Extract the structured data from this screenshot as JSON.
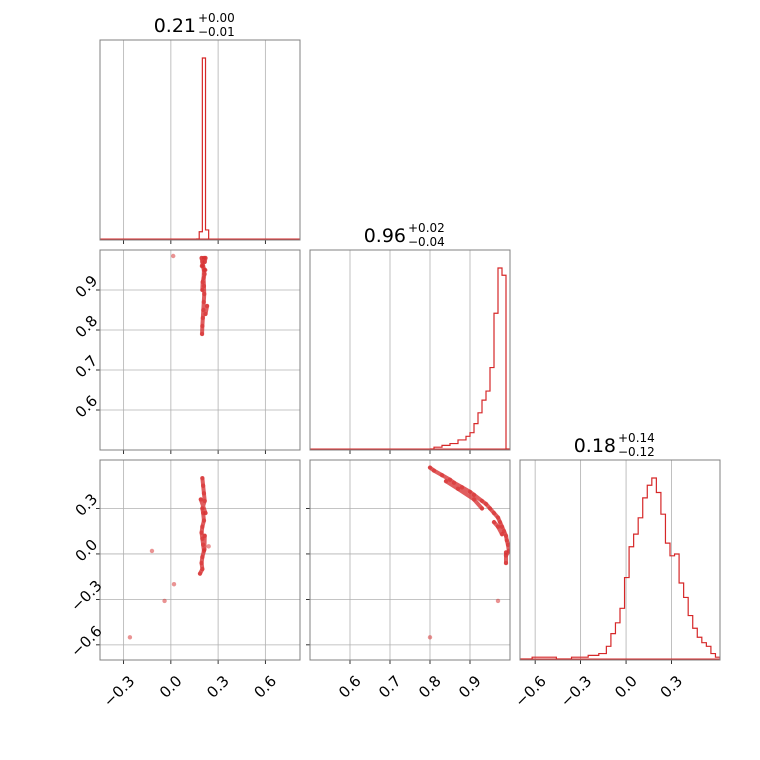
{
  "figure": {
    "background": "#ffffff",
    "accent_color": "#d62728",
    "grid_color": "#b0b0b0",
    "frame_color": "#808080"
  },
  "params": [
    {
      "id": "p0",
      "range": [
        -0.45,
        0.82
      ],
      "ticks": [
        -0.3,
        0.0,
        0.3,
        0.6
      ],
      "tick_labels": [
        "−0.3",
        "0.0",
        "0.3",
        "0.6"
      ],
      "title": {
        "value": "0.21",
        "plus": "+0.00",
        "minus": "−0.01"
      }
    },
    {
      "id": "p1",
      "range": [
        0.5,
        1.0
      ],
      "ticks": [
        0.6,
        0.7,
        0.8,
        0.9
      ],
      "tick_labels": [
        "0.6",
        "0.7",
        "0.8",
        "0.9"
      ],
      "title": {
        "value": "0.96",
        "plus": "+0.02",
        "minus": "−0.04"
      }
    },
    {
      "id": "p2",
      "range": [
        -0.7,
        0.62
      ],
      "ticks": [
        -0.6,
        -0.3,
        0.0,
        0.3
      ],
      "tick_labels": [
        "−0.6",
        "−0.3",
        "0.0",
        "0.3"
      ],
      "title": {
        "value": "0.18",
        "plus": "+0.14",
        "minus": "−0.12"
      }
    }
  ],
  "chart_data": {
    "type": "corner",
    "diagonal_histograms": [
      {
        "param": "p0",
        "bin_edges": [
          0.16,
          0.18,
          0.2,
          0.22,
          0.24
        ],
        "counts": [
          0.0,
          0.04,
          1.0,
          0.05
        ]
      },
      {
        "param": "p1",
        "bin_edges": [
          0.8,
          0.81,
          0.82,
          0.83,
          0.84,
          0.85,
          0.86,
          0.87,
          0.88,
          0.89,
          0.9,
          0.91,
          0.92,
          0.93,
          0.94,
          0.95,
          0.96,
          0.97,
          0.98,
          0.99,
          1.0
        ],
        "counts": [
          0.0,
          0.01,
          0.01,
          0.02,
          0.02,
          0.03,
          0.03,
          0.05,
          0.05,
          0.07,
          0.09,
          0.14,
          0.2,
          0.27,
          0.32,
          0.45,
          0.75,
          1.0,
          0.96,
          0.0
        ]
      },
      {
        "param": "p2",
        "bin_edges": [
          -0.7,
          -0.62,
          -0.46,
          -0.36,
          -0.3,
          -0.25,
          -0.22,
          -0.18,
          -0.13,
          -0.1,
          -0.07,
          -0.04,
          -0.01,
          0.02,
          0.05,
          0.08,
          0.11,
          0.14,
          0.17,
          0.2,
          0.23,
          0.26,
          0.29,
          0.32,
          0.35,
          0.38,
          0.41,
          0.44,
          0.47,
          0.5,
          0.53,
          0.56,
          0.59,
          0.62
        ],
        "counts": [
          0.0,
          0.01,
          0.0,
          0.01,
          0.01,
          0.02,
          0.02,
          0.03,
          0.07,
          0.14,
          0.2,
          0.28,
          0.45,
          0.62,
          0.69,
          0.78,
          0.89,
          0.96,
          1.0,
          0.92,
          0.8,
          0.64,
          0.57,
          0.58,
          0.42,
          0.34,
          0.24,
          0.17,
          0.12,
          0.09,
          0.07,
          0.03,
          0.01
        ]
      }
    ],
    "scatter_panels": [
      {
        "x": "p0",
        "y": "p1",
        "points": [
          [
            0.2,
            0.97
          ],
          [
            0.205,
            0.96
          ],
          [
            0.21,
            0.95
          ],
          [
            0.208,
            0.93
          ],
          [
            0.21,
            0.91
          ],
          [
            0.212,
            0.89
          ],
          [
            0.209,
            0.87
          ],
          [
            0.206,
            0.85
          ],
          [
            0.203,
            0.83
          ],
          [
            0.2,
            0.81
          ],
          [
            0.198,
            0.79
          ],
          [
            0.215,
            0.97
          ],
          [
            0.22,
            0.98
          ],
          [
            0.195,
            0.98
          ],
          [
            0.214,
            0.94
          ],
          [
            0.202,
            0.92
          ],
          [
            0.2,
            0.9
          ],
          [
            0.211,
            0.98
          ],
          [
            0.197,
            0.96
          ],
          [
            0.218,
            0.95
          ],
          [
            0.015,
            0.985
          ],
          [
            0.22,
            0.84
          ],
          [
            0.23,
            0.86
          ]
        ]
      },
      {
        "x": "p0",
        "y": "p2",
        "points": [
          [
            0.2,
            0.5
          ],
          [
            0.205,
            0.45
          ],
          [
            0.21,
            0.4
          ],
          [
            0.215,
            0.35
          ],
          [
            0.2,
            0.3
          ],
          [
            0.205,
            0.27
          ],
          [
            0.21,
            0.22
          ],
          [
            0.2,
            0.18
          ],
          [
            0.195,
            0.14
          ],
          [
            0.2,
            0.1
          ],
          [
            0.205,
            0.06
          ],
          [
            0.21,
            0.02
          ],
          [
            0.2,
            -0.02
          ],
          [
            0.195,
            -0.06
          ],
          [
            0.2,
            -0.1
          ],
          [
            0.185,
            -0.13
          ],
          [
            0.22,
            0.27
          ],
          [
            0.19,
            0.36
          ],
          [
            0.215,
            0.12
          ],
          [
            0.213,
            0.03
          ],
          [
            -0.12,
            0.02
          ],
          [
            0.02,
            -0.2
          ],
          [
            -0.26,
            -0.55
          ],
          [
            -0.04,
            -0.31
          ],
          [
            0.24,
            0.05
          ]
        ]
      },
      {
        "x": "p1",
        "y": "p2",
        "points": [
          [
            0.8,
            0.57
          ],
          [
            0.81,
            0.55
          ],
          [
            0.83,
            0.52
          ],
          [
            0.85,
            0.49
          ],
          [
            0.86,
            0.47
          ],
          [
            0.88,
            0.44
          ],
          [
            0.9,
            0.41
          ],
          [
            0.91,
            0.39
          ],
          [
            0.93,
            0.35
          ],
          [
            0.94,
            0.33
          ],
          [
            0.95,
            0.3
          ],
          [
            0.96,
            0.27
          ],
          [
            0.97,
            0.24
          ],
          [
            0.975,
            0.21
          ],
          [
            0.98,
            0.18
          ],
          [
            0.985,
            0.15
          ],
          [
            0.99,
            0.12
          ],
          [
            0.992,
            0.09
          ],
          [
            0.995,
            0.06
          ],
          [
            0.997,
            0.02
          ],
          [
            0.99,
            -0.01
          ],
          [
            0.96,
            0.21
          ],
          [
            0.97,
            0.18
          ],
          [
            0.98,
            0.13
          ],
          [
            0.93,
            0.3
          ],
          [
            0.91,
            0.36
          ],
          [
            0.87,
            0.43
          ],
          [
            0.84,
            0.48
          ],
          [
            0.97,
            -0.31
          ],
          [
            0.8,
            -0.55
          ],
          [
            0.99,
            -0.06
          ],
          [
            0.99,
            0.01
          ]
        ]
      }
    ]
  }
}
